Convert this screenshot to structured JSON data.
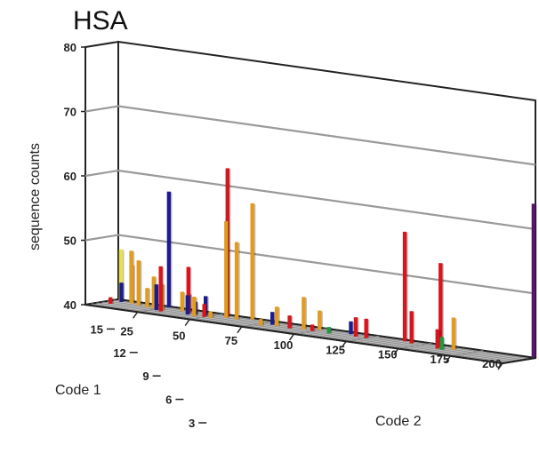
{
  "chart_data": {
    "type": "bar-3d",
    "title": "HSA",
    "zlabel": "sequence counts",
    "xlabel": "Code 2",
    "ylabel": "Code 1",
    "zlim": [
      40,
      80
    ],
    "z_ticks": [
      "40",
      "50",
      "60",
      "70",
      "80"
    ],
    "x_ticks": [
      "25",
      "50",
      "75",
      "100",
      "125",
      "150",
      "175",
      "200"
    ],
    "y_ticks": [
      "3",
      "6",
      "9",
      "12",
      "15"
    ],
    "grid": true,
    "colors": {
      "blue": "#1c1c8c",
      "red": "#d8141c",
      "orange": "#e39a1e",
      "yellow": "#e9e04a",
      "green": "#1f9a3a",
      "purple": "#5a1470"
    },
    "bars": [
      {
        "x": 5,
        "y": 8,
        "z": 41,
        "color": "red"
      },
      {
        "x": 3,
        "y": 16,
        "z": 48,
        "color": "yellow"
      },
      {
        "x": 8,
        "y": 16,
        "z": 48,
        "color": "orange"
      },
      {
        "x": 5,
        "y": 14,
        "z": 43,
        "color": "blue"
      },
      {
        "x": 10,
        "y": 14,
        "z": 46,
        "color": "orange"
      },
      {
        "x": 15,
        "y": 12,
        "z": 47,
        "color": "orange"
      },
      {
        "x": 26,
        "y": 16,
        "z": 58,
        "color": "blue"
      },
      {
        "x": 20,
        "y": 11,
        "z": 43,
        "color": "orange"
      },
      {
        "x": 24,
        "y": 10,
        "z": 45,
        "color": "orange"
      },
      {
        "x": 28,
        "y": 10,
        "z": 44,
        "color": "orange"
      },
      {
        "x": 35,
        "y": 13,
        "z": 43,
        "color": "orange"
      },
      {
        "x": 27,
        "y": 8,
        "z": 44,
        "color": "blue"
      },
      {
        "x": 30,
        "y": 7,
        "z": 47,
        "color": "red"
      },
      {
        "x": 38,
        "y": 13,
        "z": 47,
        "color": "red"
      },
      {
        "x": 40,
        "y": 11,
        "z": 43,
        "color": "red"
      },
      {
        "x": 44,
        "y": 10,
        "z": 42,
        "color": "blue"
      },
      {
        "x": 42,
        "y": 8,
        "z": 43,
        "color": "blue"
      },
      {
        "x": 48,
        "y": 11,
        "z": 43,
        "color": "blue"
      },
      {
        "x": 46,
        "y": 7,
        "z": 43,
        "color": "orange"
      },
      {
        "x": 50,
        "y": 8,
        "z": 42,
        "color": "red"
      },
      {
        "x": 53,
        "y": 8,
        "z": 41,
        "color": "orange"
      },
      {
        "x": 55,
        "y": 15,
        "z": 63,
        "color": "red"
      },
      {
        "x": 57,
        "y": 12,
        "z": 55,
        "color": "orange"
      },
      {
        "x": 62,
        "y": 12,
        "z": 52,
        "color": "orange"
      },
      {
        "x": 66,
        "y": 16,
        "z": 58,
        "color": "orange"
      },
      {
        "x": 80,
        "y": 11,
        "z": 42,
        "color": "blue"
      },
      {
        "x": 83,
        "y": 10,
        "z": 43,
        "color": "orange"
      },
      {
        "x": 78,
        "y": 7,
        "z": 41,
        "color": "orange"
      },
      {
        "x": 90,
        "y": 9,
        "z": 42,
        "color": "red"
      },
      {
        "x": 95,
        "y": 11,
        "z": 45,
        "color": "orange"
      },
      {
        "x": 100,
        "y": 14,
        "z": 43,
        "color": "orange"
      },
      {
        "x": 100,
        "y": 10,
        "z": 41,
        "color": "red"
      },
      {
        "x": 108,
        "y": 10,
        "z": 41,
        "color": "green"
      },
      {
        "x": 115,
        "y": 14,
        "z": 42,
        "color": "blue"
      },
      {
        "x": 120,
        "y": 11,
        "z": 43,
        "color": "red"
      },
      {
        "x": 125,
        "y": 11,
        "z": 43,
        "color": "red"
      },
      {
        "x": 140,
        "y": 15,
        "z": 57,
        "color": "red"
      },
      {
        "x": 145,
        "y": 13,
        "z": 45,
        "color": "red"
      },
      {
        "x": 158,
        "y": 14,
        "z": 53,
        "color": "red"
      },
      {
        "x": 160,
        "y": 10,
        "z": 43,
        "color": "red"
      },
      {
        "x": 163,
        "y": 9,
        "z": 42,
        "color": "green"
      },
      {
        "x": 166,
        "y": 12,
        "z": 45,
        "color": "orange"
      },
      {
        "x": 200,
        "y": 17,
        "z": 64,
        "color": "purple"
      }
    ]
  }
}
